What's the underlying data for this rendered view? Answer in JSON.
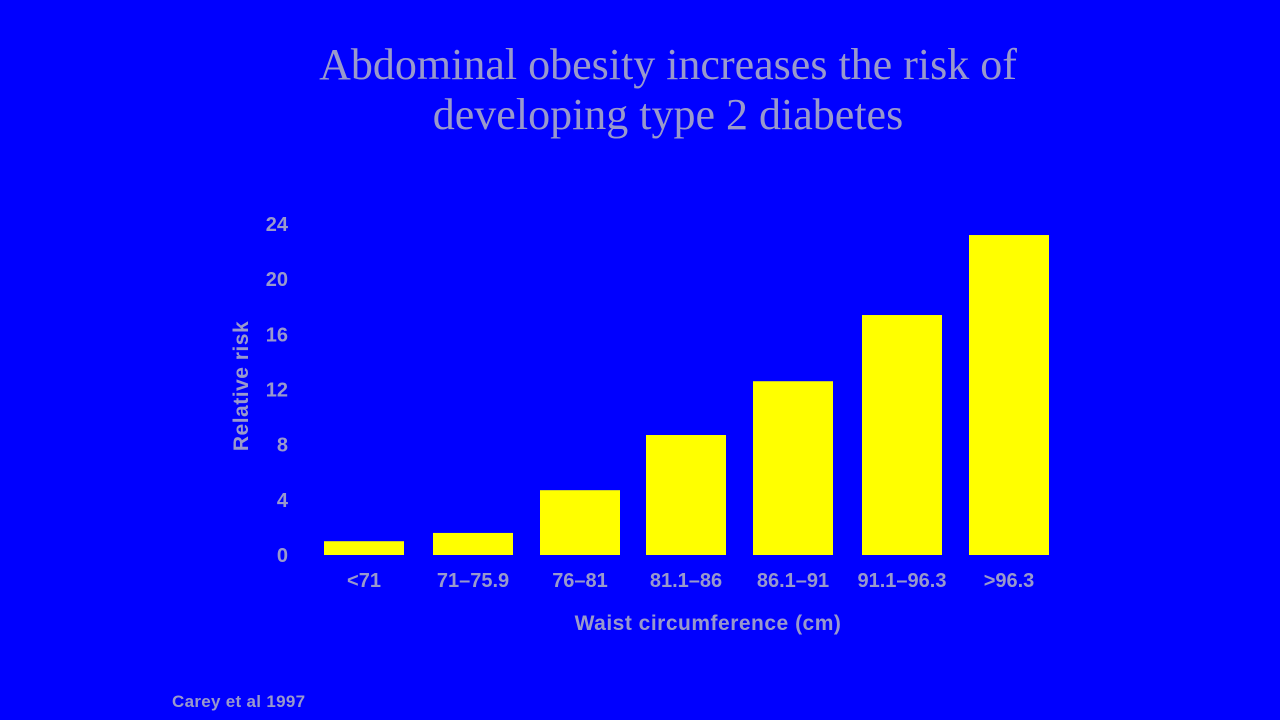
{
  "slide": {
    "title_line1": "Abdominal obesity increases the risk of",
    "title_line2": "developing type 2 diabetes",
    "citation": "Carey et al 1997"
  },
  "colors": {
    "background": "#0000ff",
    "bar": "#ffff00",
    "text": "#9999cc"
  },
  "chart_data": {
    "type": "bar",
    "title": "Abdominal obesity increases the risk of developing type 2 diabetes",
    "xlabel": "Waist circumference (cm)",
    "ylabel": "Relative risk",
    "categories": [
      "<71",
      "71–75.9",
      "76–81",
      "81.1–86",
      "86.1–91",
      "91.1–96.3",
      ">96.3"
    ],
    "values": [
      1.0,
      1.6,
      4.7,
      8.7,
      12.6,
      17.4,
      23.2
    ],
    "ylim": [
      0,
      24
    ],
    "yticks": [
      "0",
      "4",
      "8",
      "12",
      "16",
      "20",
      "24"
    ],
    "grid": false,
    "legend": "none"
  }
}
